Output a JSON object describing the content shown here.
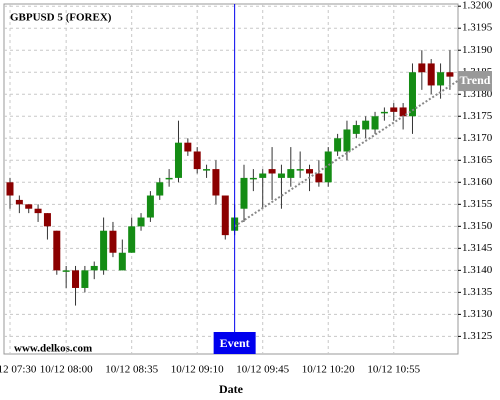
{
  "chart_data": {
    "type": "candlestick",
    "title": "GBPUSD 5 (FOREX)",
    "x_label": "Date",
    "watermark": "www.delkos.com",
    "categories": [
      "10/12 07:30",
      null,
      null,
      null,
      null,
      null,
      "10/12 08:00",
      null,
      null,
      null,
      null,
      null,
      null,
      "10/12 08:35",
      null,
      null,
      null,
      null,
      null,
      null,
      "10/12 09:10",
      null,
      null,
      null,
      null,
      null,
      null,
      "10/12 09:45",
      null,
      null,
      null,
      null,
      null,
      null,
      "10/12 10:20",
      null,
      null,
      null,
      null,
      null,
      null,
      "10/12 10:55",
      null,
      null,
      null,
      null,
      null,
      null
    ],
    "open": [
      1.316,
      1.3156,
      1.3155,
      1.3154,
      1.3153,
      1.3149,
      1.314,
      1.314,
      1.3136,
      1.314,
      1.314,
      1.3149,
      1.314,
      1.3144,
      1.315,
      1.3152,
      1.3157,
      1.3161,
      1.3161,
      1.3169,
      1.3167,
      1.3163,
      1.3163,
      1.3157,
      1.3149,
      1.3154,
      1.3161,
      1.3161,
      1.3163,
      1.3161,
      1.3161,
      1.3163,
      1.3163,
      1.3162,
      1.316,
      1.3167,
      1.3167,
      1.3171,
      1.3172,
      1.3172,
      1.3176,
      1.3177,
      1.3177,
      1.3175,
      1.3187,
      1.3187,
      1.3182,
      1.3185
    ],
    "high": [
      1.3161,
      1.3157,
      1.3155,
      1.3155,
      1.3153,
      1.3149,
      1.3141,
      1.3141,
      1.3141,
      1.3142,
      1.3152,
      1.3151,
      1.3147,
      1.3152,
      1.3153,
      1.3158,
      1.3161,
      1.3163,
      1.3174,
      1.317,
      1.3168,
      1.3164,
      1.3165,
      1.3157,
      1.3155,
      1.3164,
      1.3163,
      1.3163,
      1.3168,
      1.3164,
      1.3168,
      1.3167,
      1.3164,
      1.3165,
      1.3168,
      1.3171,
      1.3174,
      1.3174,
      1.3175,
      1.3176,
      1.3177,
      1.3178,
      1.3178,
      1.3187,
      1.319,
      1.3188,
      1.3187,
      1.319
    ],
    "low": [
      1.3154,
      1.3153,
      1.3153,
      1.3151,
      1.3147,
      1.3139,
      1.3136,
      1.3132,
      1.3135,
      1.3138,
      1.3139,
      1.3143,
      1.314,
      1.3144,
      1.3149,
      1.3151,
      1.3156,
      1.3159,
      1.316,
      1.3166,
      1.3162,
      1.3161,
      1.3155,
      1.3147,
      1.3148,
      1.3151,
      1.3158,
      1.3154,
      1.3156,
      1.3154,
      1.3159,
      1.3161,
      1.3158,
      1.3159,
      1.3159,
      1.3166,
      1.3165,
      1.317,
      1.317,
      1.3171,
      1.3174,
      1.3174,
      1.3172,
      1.3171,
      1.3181,
      1.318,
      1.3179,
      1.3181
    ],
    "close": [
      1.3157,
      1.3155,
      1.3154,
      1.3153,
      1.315,
      1.314,
      1.314,
      1.3136,
      1.314,
      1.3141,
      1.3149,
      1.3144,
      1.3144,
      1.315,
      1.3152,
      1.3157,
      1.316,
      1.3161,
      1.3169,
      1.3167,
      1.3163,
      1.3163,
      1.3157,
      1.3148,
      1.3152,
      1.3161,
      1.3161,
      1.3162,
      1.3162,
      1.3162,
      1.3163,
      1.3163,
      1.3162,
      1.316,
      1.3167,
      1.317,
      1.3172,
      1.3173,
      1.3174,
      1.3175,
      1.3176,
      1.3176,
      1.3175,
      1.3185,
      1.3185,
      1.3182,
      1.3185,
      1.3184
    ],
    "up_color": "#148c14",
    "down_color": "#8b0000",
    "event": {
      "index": 24,
      "label": "Event",
      "color": "#0000ee"
    },
    "trend": {
      "label": "Trend",
      "x": [
        24,
        47.8
      ],
      "values": [
        1.315,
        1.3183
      ]
    },
    "ylim": [
      1.3121,
      1.32005
    ],
    "yticks": [
      1.3125,
      {
        "value": 1.313,
        "label": "1.3130"
      },
      1.3135,
      {
        "value": 1.314,
        "label": "1.3140"
      },
      1.3145,
      {
        "value": 1.315,
        "label": "1.3150"
      },
      1.3155,
      {
        "value": 1.316,
        "label": "1.3160"
      },
      1.3165,
      {
        "value": 1.317,
        "label": "1.3170"
      },
      1.3175,
      {
        "value": 1.318,
        "label": "1.3180"
      },
      1.3185,
      {
        "value": 1.319,
        "label": "1.3190"
      },
      1.3195,
      {
        "value": 1.32,
        "label": "1.3200"
      }
    ],
    "grid": true
  }
}
